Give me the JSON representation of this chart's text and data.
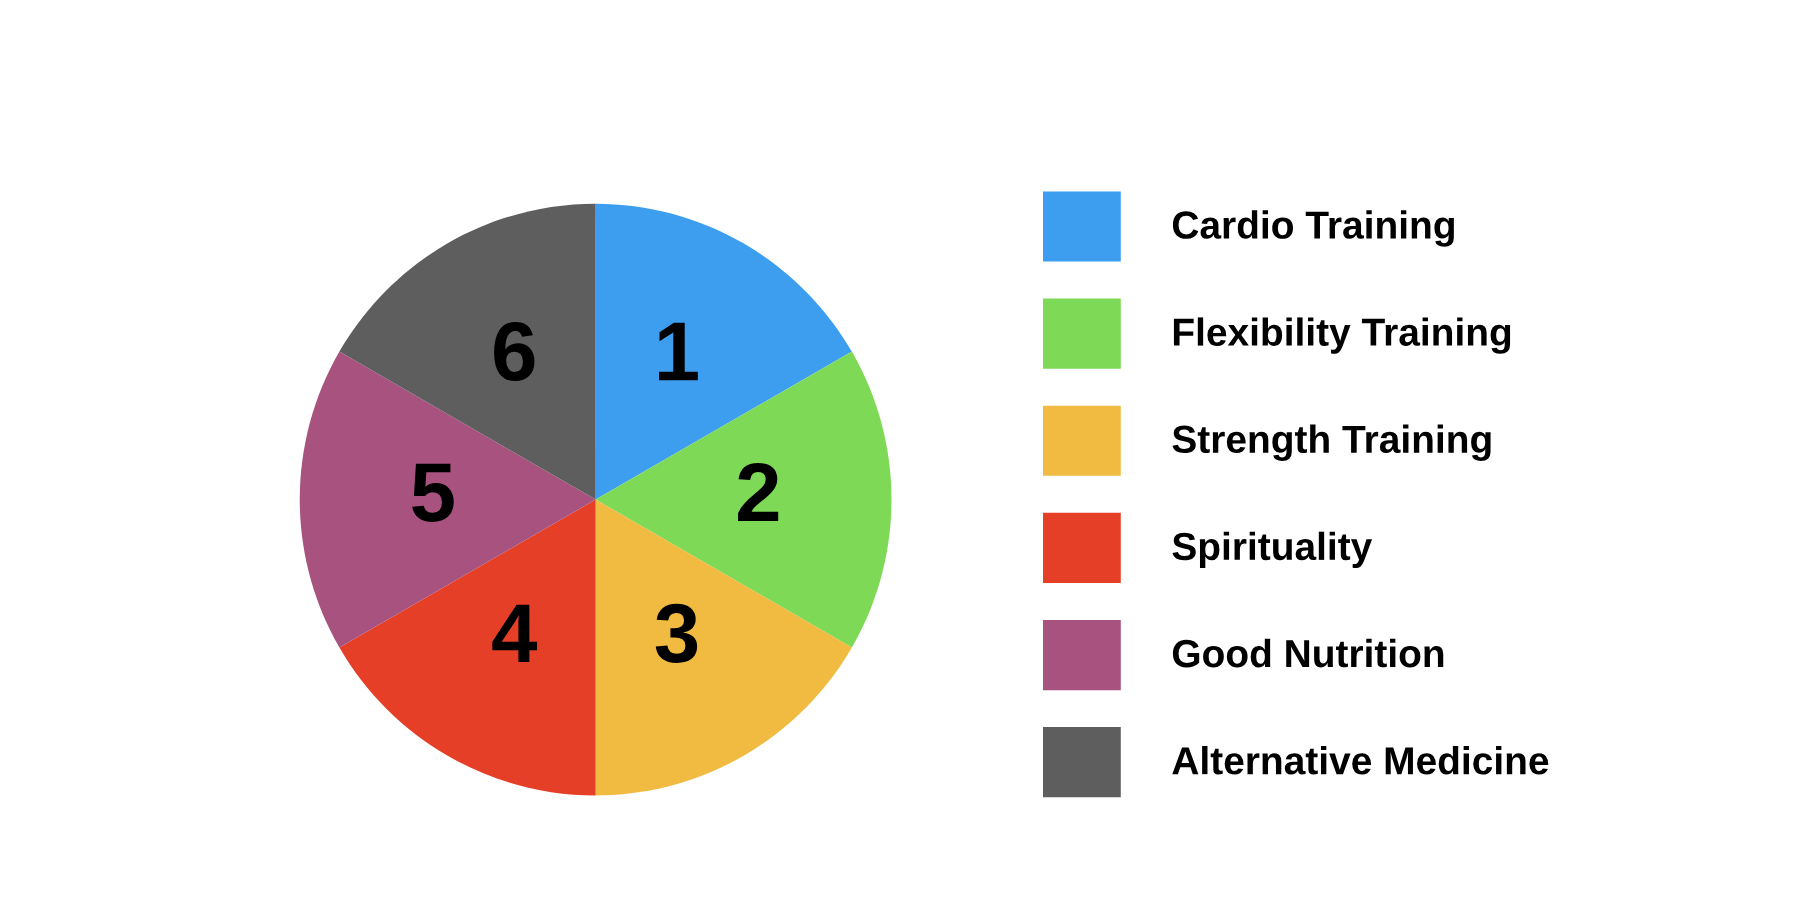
{
  "chart_data": {
    "type": "pie",
    "categories": [
      "Cardio Training",
      "Flexibility Training",
      "Strength Training",
      "Spirituality",
      "Good Nutrition",
      "Alternative Medicine"
    ],
    "values": [
      16.67,
      16.67,
      16.67,
      16.67,
      16.67,
      16.67
    ],
    "annotations": [
      "1",
      "2",
      "3",
      "4",
      "5",
      "6"
    ],
    "colors": [
      "#3d9ef0",
      "#7ed957",
      "#f0bb40",
      "#e63f27",
      "#a8527f",
      "#5e5e5e"
    ],
    "legend": "right"
  }
}
